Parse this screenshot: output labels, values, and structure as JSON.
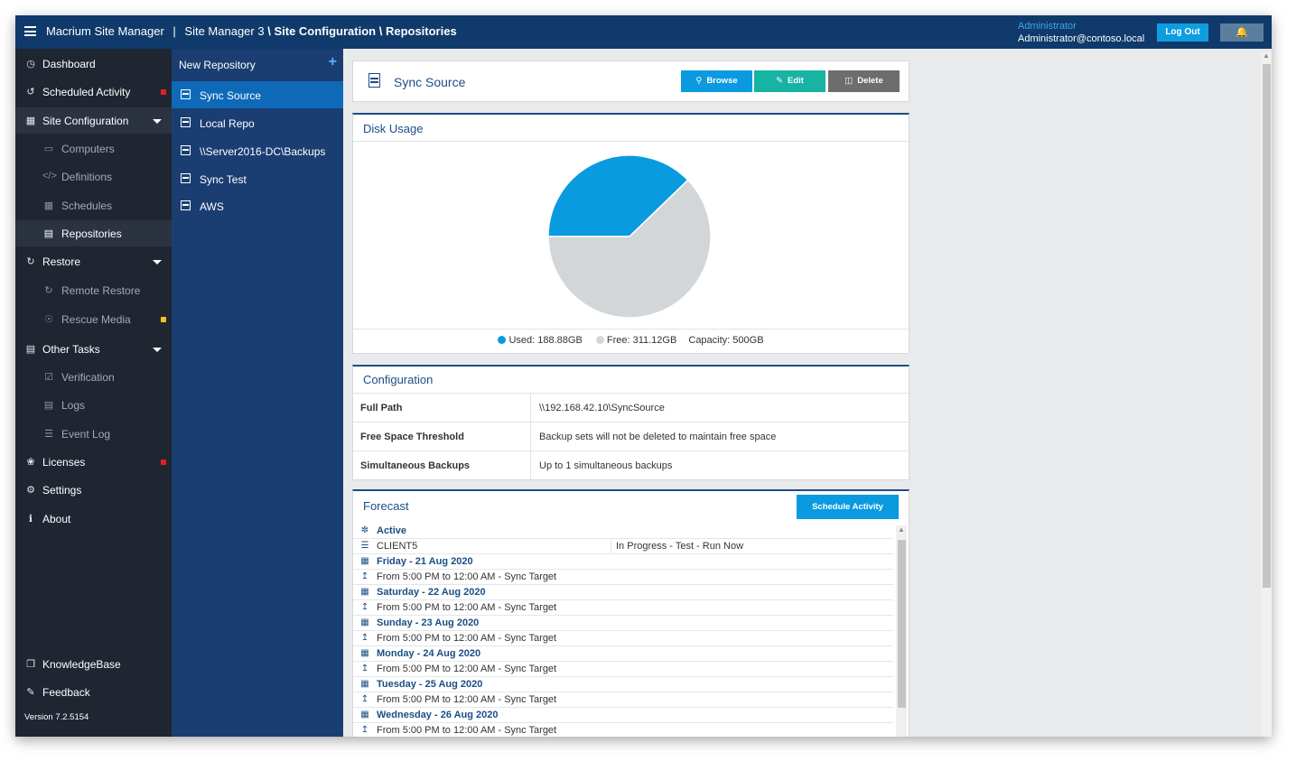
{
  "header": {
    "app_title": "Macrium Site Manager",
    "site": "Site Manager 3",
    "path": "Site Configuration \\ Repositories",
    "role": "Administrator",
    "user": "Administrator@contoso.local",
    "logout_label": "Log Out"
  },
  "sidebar": {
    "items": [
      {
        "label": "Dashboard",
        "icon": "dashboard-icon"
      },
      {
        "label": "Scheduled Activity",
        "icon": "history-icon"
      },
      {
        "label": "Site Configuration",
        "icon": "sitemap-icon"
      },
      {
        "label": "Computers",
        "icon": "monitor-icon"
      },
      {
        "label": "Definitions",
        "icon": "code-icon"
      },
      {
        "label": "Schedules",
        "icon": "calendar-icon"
      },
      {
        "label": "Repositories",
        "icon": "repository-icon"
      },
      {
        "label": "Restore",
        "icon": "refresh-icon"
      },
      {
        "label": "Remote Restore",
        "icon": "refresh-icon"
      },
      {
        "label": "Rescue Media",
        "icon": "disc-icon"
      },
      {
        "label": "Other Tasks",
        "icon": "tasks-icon"
      },
      {
        "label": "Verification",
        "icon": "checkbox-icon"
      },
      {
        "label": "Logs",
        "icon": "file-icon"
      },
      {
        "label": "Event Log",
        "icon": "list-icon"
      },
      {
        "label": "Licenses",
        "icon": "award-icon"
      },
      {
        "label": "Settings",
        "icon": "cogs-icon"
      },
      {
        "label": "About",
        "icon": "info-icon"
      },
      {
        "label": "KnowledgeBase",
        "icon": "book-icon"
      },
      {
        "label": "Feedback",
        "icon": "feedback-icon"
      }
    ],
    "version": "Version 7.2.5154",
    "flag_colors": {
      "red": "#e02020",
      "yellow": "#f0c020"
    }
  },
  "repos": {
    "new_label": "New Repository",
    "items": [
      "Sync Source",
      "Local Repo",
      "\\\\Server2016-DC\\Backups",
      "Sync Test",
      "AWS"
    ]
  },
  "detail": {
    "title": "Sync Source",
    "browse_label": "Browse",
    "edit_label": "Edit",
    "delete_label": "Delete"
  },
  "disk": {
    "title": "Disk Usage",
    "used_label": "Used: 188.88GB",
    "free_label": "Free: 311.12GB",
    "capacity_label": "Capacity: 500GB"
  },
  "chart_data": {
    "type": "pie",
    "title": "Disk Usage",
    "categories": [
      "Used",
      "Free"
    ],
    "values": [
      188.88,
      311.12
    ],
    "colors": [
      "#0a9ae0",
      "#d3d6d8"
    ]
  },
  "config": {
    "title": "Configuration",
    "rows": [
      {
        "key": "Full Path",
        "value": "\\\\192.168.42.10\\SyncSource"
      },
      {
        "key": "Free Space Threshold",
        "value": "Backup sets will not be deleted to maintain free space"
      },
      {
        "key": "Simultaneous Backups",
        "value": "Up to 1 simultaneous backups"
      }
    ]
  },
  "forecast": {
    "title": "Forecast",
    "schedule_label": "Schedule Activity",
    "active_label": "Active",
    "client": "CLIENT5",
    "client_status": "In Progress - Test - Run Now",
    "days": [
      {
        "date": "Friday - 21 Aug 2020",
        "entry": "From 5:00 PM to 12:00 AM - Sync Target"
      },
      {
        "date": "Saturday - 22 Aug 2020",
        "entry": "From 5:00 PM to 12:00 AM - Sync Target"
      },
      {
        "date": "Sunday - 23 Aug 2020",
        "entry": "From 5:00 PM to 12:00 AM - Sync Target"
      },
      {
        "date": "Monday - 24 Aug 2020",
        "entry": "From 5:00 PM to 12:00 AM - Sync Target"
      },
      {
        "date": "Tuesday - 25 Aug 2020",
        "entry": "From 5:00 PM to 12:00 AM - Sync Target"
      },
      {
        "date": "Wednesday - 26 Aug 2020",
        "entry": "From 5:00 PM to 12:00 AM - Sync Target"
      }
    ]
  },
  "colors": {
    "topbar": "#0f3a6b",
    "sidebar": "#1f2632",
    "repo_panel": "#1a3e72",
    "accent": "#0e9de0",
    "edit": "#17b3a3",
    "delete": "#6d6d6d"
  }
}
